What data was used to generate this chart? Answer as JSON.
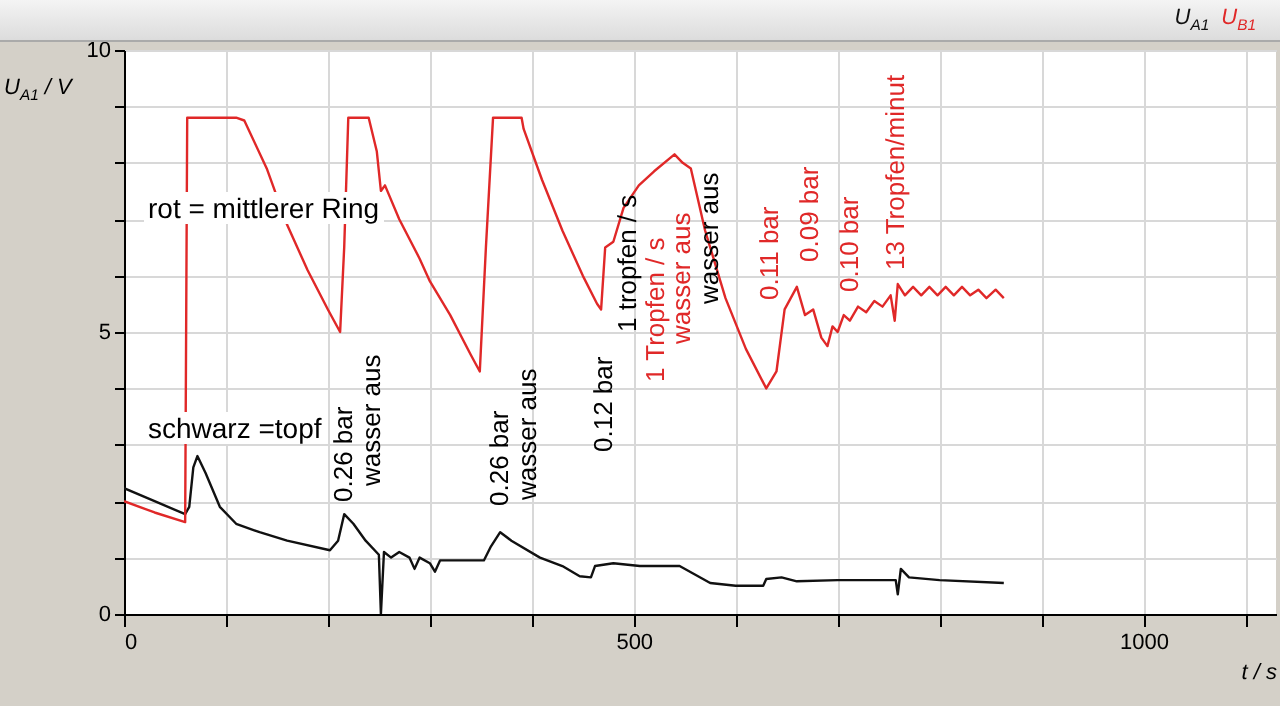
{
  "chart_data": {
    "type": "line",
    "xlabel": "t / s",
    "ylabel": "U$_{A1}$ / V",
    "xlim": [
      0,
      1130
    ],
    "ylim": [
      0,
      10
    ],
    "xticks": [
      0,
      {
        "value": 100,
        "label": null
      },
      {
        "value": 200,
        "label": null
      },
      {
        "value": 300,
        "label": null
      },
      {
        "value": 400,
        "label": null
      },
      500,
      {
        "value": 600,
        "label": null
      },
      {
        "value": 700,
        "label": null
      },
      {
        "value": 800,
        "label": null
      },
      {
        "value": 900,
        "label": null
      },
      1000,
      {
        "value": 1100,
        "label": null
      }
    ],
    "yticks": [
      0,
      {
        "value": 1,
        "label": null
      },
      {
        "value": 2,
        "label": null
      },
      {
        "value": 3,
        "label": null
      },
      {
        "value": 4,
        "label": null
      },
      5,
      {
        "value": 6,
        "label": null
      },
      {
        "value": 7,
        "label": null
      },
      {
        "value": 8,
        "label": null
      },
      {
        "value": 9,
        "label": null
      },
      10
    ],
    "grid": true,
    "legend": "top right",
    "series": [
      {
        "name": "U$_{A1}$",
        "color": "#111111",
        "x": [
          0,
          30,
          60,
          64,
          68,
          72,
          80,
          94,
          110,
          133,
          160,
          202,
          210,
          216,
          225,
          237,
          250,
          252,
          255,
          262,
          270,
          280,
          285,
          290,
          300,
          305,
          310,
          330,
          353,
          360,
          369,
          380,
          408,
          430,
          447,
          458,
          462,
          480,
          506,
          545,
          560,
          575,
          600,
          627,
          630,
          645,
          660,
          700,
          757,
          759,
          762,
          770,
          800,
          863
        ],
        "values": [
          2.23,
          2.0,
          1.77,
          1.9,
          2.6,
          2.8,
          2.5,
          1.9,
          1.6,
          1.45,
          1.3,
          1.13,
          1.3,
          1.77,
          1.6,
          1.3,
          1.05,
          0.0,
          1.1,
          1.0,
          1.1,
          1.0,
          0.8,
          1.0,
          0.9,
          0.75,
          0.95,
          0.95,
          0.95,
          1.2,
          1.45,
          1.3,
          1.0,
          0.85,
          0.67,
          0.65,
          0.85,
          0.9,
          0.85,
          0.85,
          0.7,
          0.55,
          0.5,
          0.5,
          0.62,
          0.65,
          0.58,
          0.6,
          0.6,
          0.35,
          0.8,
          0.65,
          0.6,
          0.55
        ]
      },
      {
        "name": "U$_{B1}$",
        "color": "#e02828",
        "x": [
          0,
          30,
          60,
          62,
          110,
          118,
          140,
          160,
          180,
          200,
          212,
          216,
          220,
          240,
          248,
          252,
          256,
          270,
          290,
          300,
          320,
          340,
          349,
          355,
          362,
          390,
          392,
          410,
          430,
          450,
          464,
          468,
          472,
          480,
          490,
          505,
          520,
          540,
          548,
          556,
          570,
          590,
          610,
          630,
          640,
          648,
          660,
          668,
          676,
          684,
          690,
          695,
          700,
          706,
          712,
          720,
          728,
          736,
          744,
          752,
          756,
          759,
          766,
          774,
          782,
          790,
          798,
          806,
          814,
          822,
          830,
          838,
          846,
          855,
          863
        ],
        "values": [
          2.0,
          1.8,
          1.63,
          8.8,
          8.8,
          8.75,
          7.9,
          6.9,
          6.1,
          5.4,
          5.0,
          6.5,
          8.8,
          8.8,
          8.2,
          7.5,
          7.6,
          7.0,
          6.3,
          5.9,
          5.3,
          4.6,
          4.3,
          6.5,
          8.8,
          8.8,
          8.6,
          7.7,
          6.8,
          6.0,
          5.5,
          5.4,
          6.5,
          6.6,
          7.2,
          7.6,
          7.85,
          8.15,
          8.0,
          7.9,
          6.8,
          5.6,
          4.7,
          4.0,
          4.3,
          5.4,
          5.8,
          5.3,
          5.4,
          4.9,
          4.75,
          5.1,
          5.0,
          5.3,
          5.2,
          5.45,
          5.35,
          5.55,
          5.45,
          5.65,
          5.2,
          5.85,
          5.65,
          5.8,
          5.65,
          5.8,
          5.65,
          5.8,
          5.65,
          5.8,
          5.65,
          5.75,
          5.6,
          5.75,
          5.6
        ]
      }
    ],
    "annotations": [
      "rot = mittlerer Ring",
      "schwarz =topf",
      "0.26 bar",
      "wasser aus",
      "0.26 bar",
      "wasser aus",
      "0.12 bar",
      "1 tropfen / s",
      "1 Tropfen / s",
      "wasser aus",
      "wasser aus",
      "0.11 bar",
      "0.09 bar",
      "0.10 bar",
      "13 Tropfen/minut"
    ]
  }
}
